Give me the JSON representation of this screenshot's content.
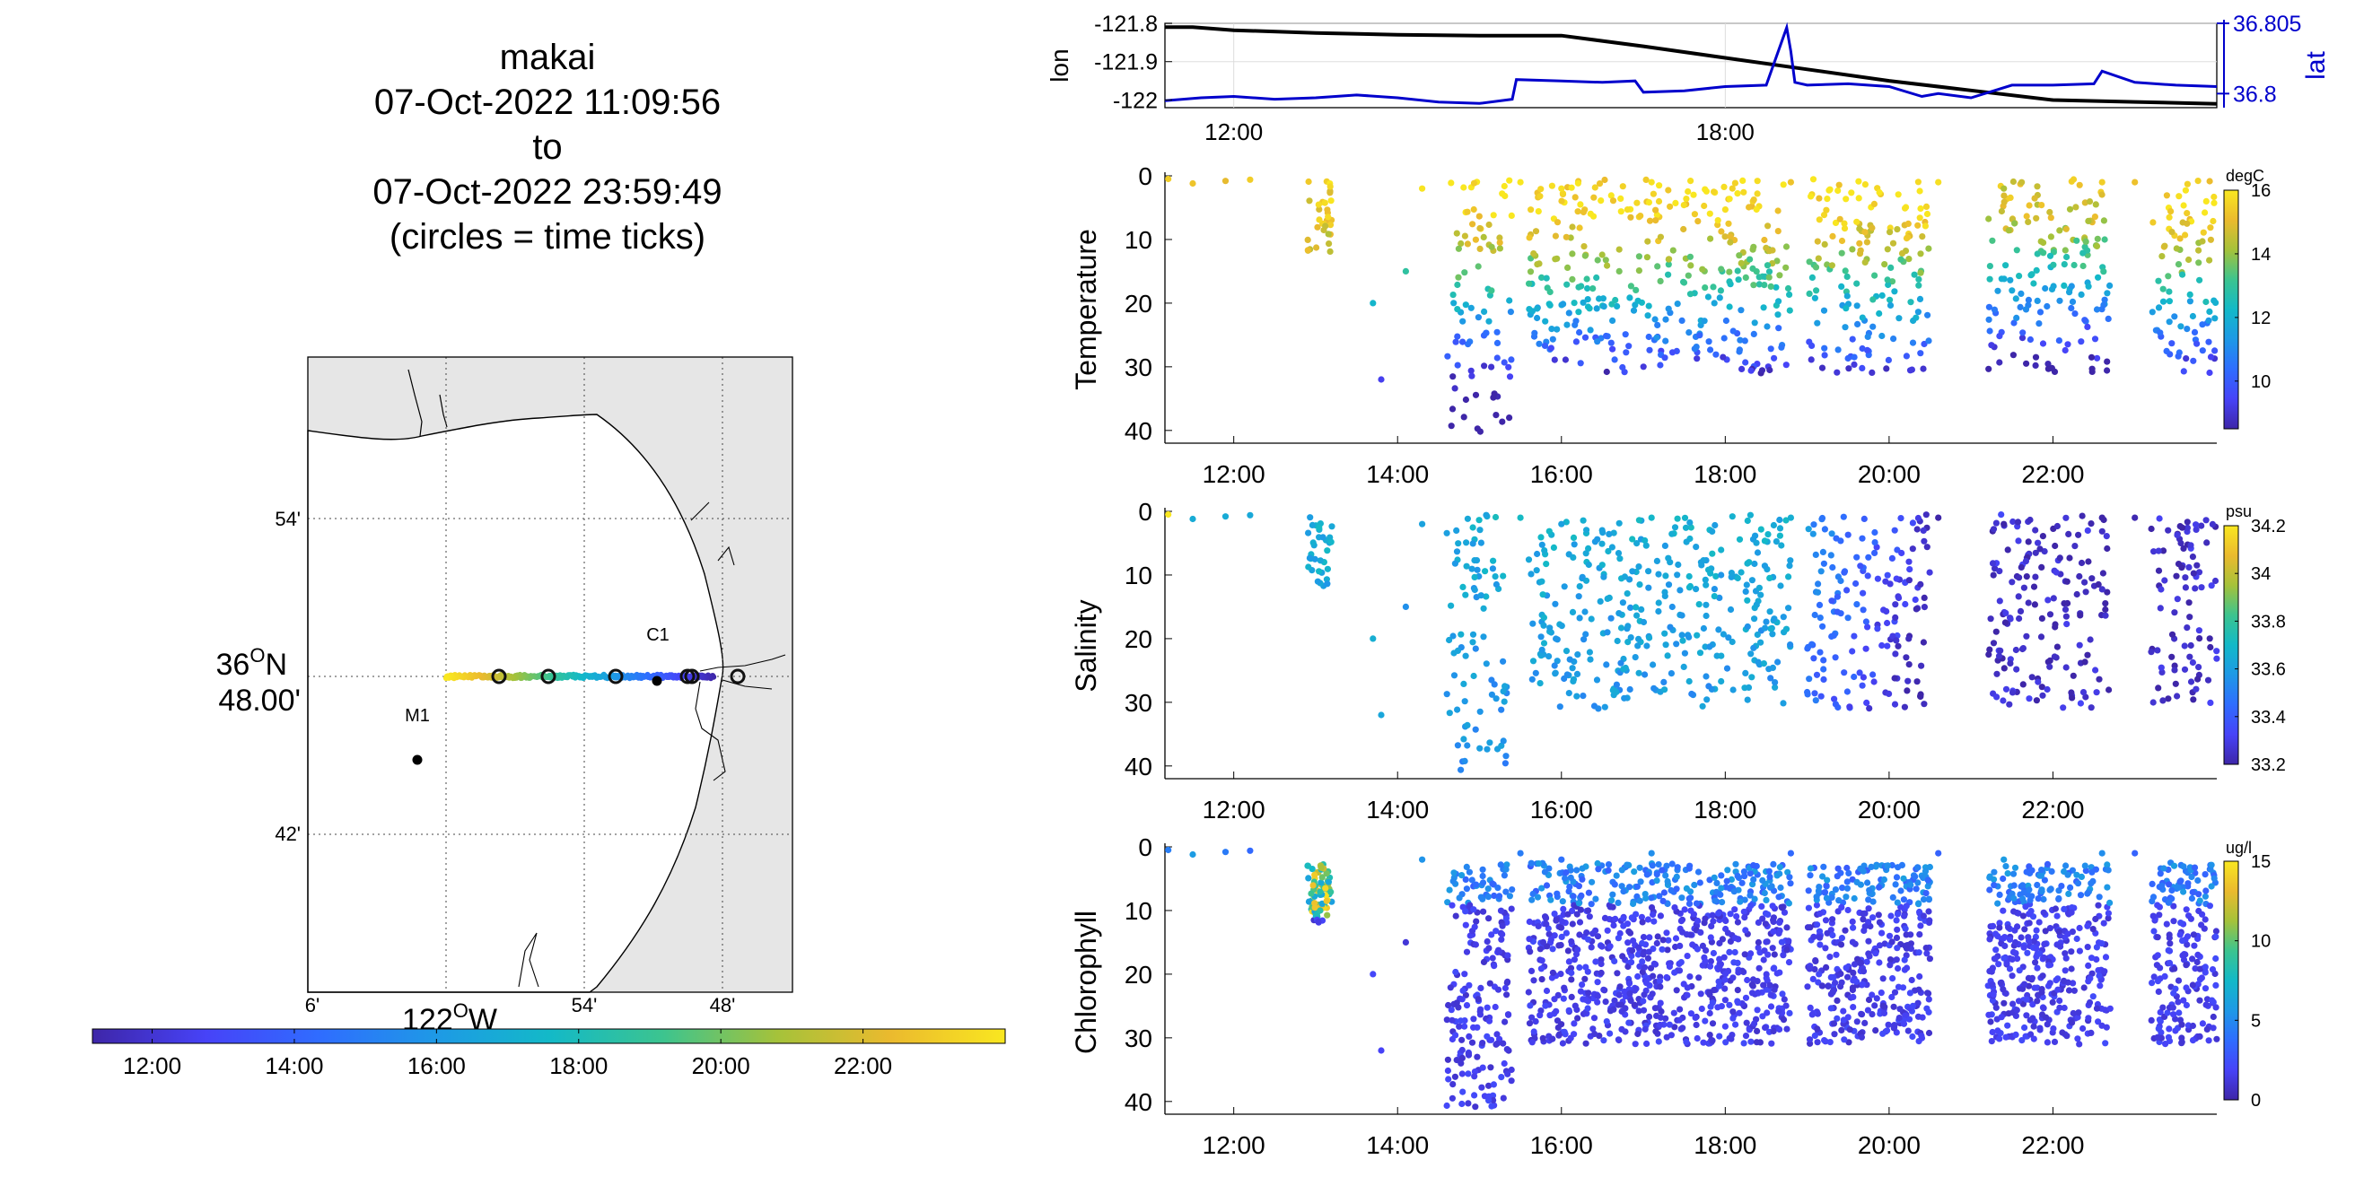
{
  "title": {
    "platform": "makai",
    "start": "07-Oct-2022 11:09:56",
    "to": "to",
    "end": "07-Oct-2022 23:59:49",
    "note": "(circles = time ticks)"
  },
  "map": {
    "lat_ticks": [
      "54'",
      "36",
      "48.00'",
      "42'"
    ],
    "lat_deg_suffix": "O",
    "lat_hemisphere": "N",
    "lon_ticks": [
      "6'",
      "54'",
      "48'"
    ],
    "lon_label_deg": "122",
    "lon_deg_suffix": "O",
    "lon_hemisphere": "W",
    "stations": [
      {
        "name": "C1",
        "lon": -121.847,
        "lat": 36.797
      },
      {
        "name": "M1",
        "lon": -122.022,
        "lat": 36.749
      }
    ],
    "land_color": "#e6e6e6",
    "track_lat": 36.8,
    "track_lon_range": [
      -122.0,
      -121.81
    ]
  },
  "time_colorbar": {
    "ticks": [
      "12:00",
      "14:00",
      "16:00",
      "18:00",
      "20:00",
      "22:00"
    ],
    "range_hours": [
      11.16,
      24.0
    ]
  },
  "chart_data": [
    {
      "type": "line",
      "name": "position",
      "ylabel_left": "lon",
      "ylabel_right": "lat",
      "x_ticks": [
        "12:00",
        "18:00"
      ],
      "y_left_ticks": [
        "-121.8",
        "-121.9",
        "-122"
      ],
      "y_right_ticks": [
        "36.805",
        "36.8"
      ],
      "ylim_left": [
        -122.02,
        -121.8
      ],
      "ylim_right": [
        36.799,
        36.805
      ],
      "xlim_hours": [
        11.16,
        24.0
      ],
      "series": [
        {
          "name": "lon",
          "color": "#000000",
          "x": [
            11.16,
            11.5,
            12.0,
            13.0,
            14.0,
            15.0,
            16.0,
            17.0,
            18.0,
            19.0,
            20.0,
            21.0,
            22.0,
            23.0,
            24.0
          ],
          "y": [
            -121.81,
            -121.81,
            -121.818,
            -121.825,
            -121.83,
            -121.832,
            -121.832,
            -121.86,
            -121.89,
            -121.92,
            -121.95,
            -121.975,
            -122.0,
            -122.005,
            -122.01
          ]
        },
        {
          "name": "lat",
          "color": "#0000cc",
          "x": [
            11.16,
            11.6,
            12.0,
            12.5,
            13.0,
            13.5,
            14.0,
            14.5,
            15.0,
            15.4,
            15.45,
            16.0,
            16.5,
            16.9,
            17.0,
            17.5,
            18.0,
            18.5,
            18.75,
            18.8,
            18.85,
            19.0,
            19.5,
            20.0,
            20.4,
            20.6,
            21.0,
            21.5,
            22.0,
            22.5,
            22.6,
            23.0,
            23.5,
            24.0
          ],
          "y": [
            36.7995,
            36.7997,
            36.7998,
            36.7996,
            36.7997,
            36.7999,
            36.7997,
            36.7994,
            36.7993,
            36.7996,
            36.801,
            36.8009,
            36.8008,
            36.8009,
            36.8001,
            36.8002,
            36.8005,
            36.8006,
            36.8047,
            36.803,
            36.8008,
            36.8006,
            36.8007,
            36.8005,
            36.7998,
            36.8,
            36.7997,
            36.8006,
            36.8006,
            36.8007,
            36.8016,
            36.8008,
            36.8006,
            36.8005
          ]
        }
      ]
    },
    {
      "type": "scatter",
      "name": "temperature",
      "ylabel": "Temperature",
      "units": "degC",
      "x_ticks": [
        "12:00",
        "14:00",
        "16:00",
        "18:00",
        "20:00",
        "22:00"
      ],
      "y_ticks": [
        "0",
        "10",
        "20",
        "30",
        "40"
      ],
      "ylim": [
        0,
        42
      ],
      "clim": [
        8.5,
        16
      ],
      "cbar_ticks": [
        "16",
        "14",
        "12",
        "10"
      ]
    },
    {
      "type": "scatter",
      "name": "salinity",
      "ylabel": "Salinity",
      "units": "psu",
      "x_ticks": [
        "12:00",
        "14:00",
        "16:00",
        "18:00",
        "20:00",
        "22:00"
      ],
      "y_ticks": [
        "0",
        "10",
        "20",
        "30",
        "40"
      ],
      "ylim": [
        0,
        42
      ],
      "clim": [
        33.2,
        34.2
      ],
      "cbar_ticks": [
        "34.2",
        "34",
        "33.8",
        "33.6",
        "33.4",
        "33.2"
      ]
    },
    {
      "type": "scatter",
      "name": "chlorophyll",
      "ylabel": "Chlorophyll",
      "units": "ug/l",
      "x_ticks": [
        "12:00",
        "14:00",
        "16:00",
        "18:00",
        "20:00",
        "22:00"
      ],
      "y_ticks": [
        "0",
        "10",
        "20",
        "30",
        "40"
      ],
      "ylim": [
        0,
        42
      ],
      "clim": [
        0,
        15
      ],
      "cbar_ticks": [
        "15",
        "10",
        "5",
        "0"
      ]
    }
  ],
  "profile_segments_hours": [
    [
      12.9,
      13.2
    ],
    [
      14.6,
      15.4
    ],
    [
      15.6,
      17.2
    ],
    [
      17.2,
      18.8
    ],
    [
      19.0,
      20.5
    ],
    [
      21.2,
      22.7
    ],
    [
      23.2,
      24.0
    ]
  ],
  "colormap": [
    "#3e26a8",
    "#4743f8",
    "#2f6dff",
    "#1e99e6",
    "#13b9c8",
    "#3cc48f",
    "#a5c23a",
    "#ebba2e",
    "#f9e720"
  ]
}
